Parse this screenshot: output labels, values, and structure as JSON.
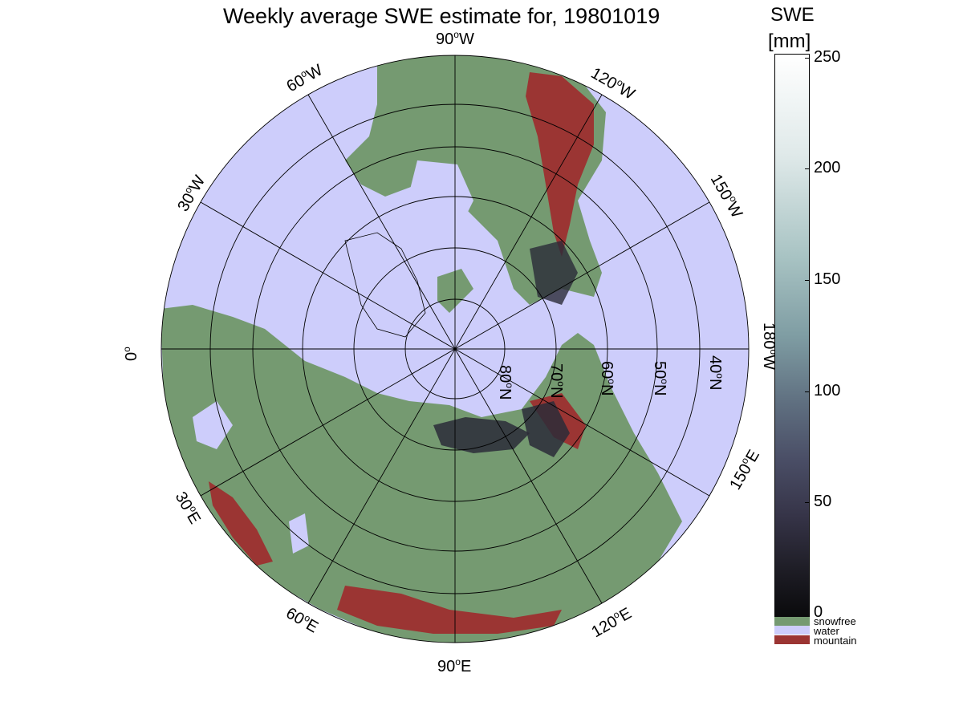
{
  "title": "Weekly average SWE estimate for, 19801019",
  "colorbar": {
    "title_line1": "SWE",
    "title_line2": "[mm]",
    "ticks": [
      {
        "label": "250",
        "value": 250
      },
      {
        "label": "200",
        "value": 200
      },
      {
        "label": "150",
        "value": 150
      },
      {
        "label": "100",
        "value": 100
      },
      {
        "label": "50",
        "value": 50
      },
      {
        "label": "0",
        "value": 0
      }
    ],
    "range": [
      0,
      250
    ]
  },
  "legend": [
    {
      "label": "snowfree",
      "color": "#759a71"
    },
    {
      "label": "water",
      "color": "#cdcdfb"
    },
    {
      "label": "mountain",
      "color": "#9b3533"
    }
  ],
  "map": {
    "projection": "north polar stereographic",
    "ocean_color": "#cdcdfb",
    "land_color": "#759a71",
    "mountain_color": "#9b3533",
    "snow_color": "#2b2b38",
    "longitude_labels": [
      {
        "deg": "90",
        "hemi": "W"
      },
      {
        "deg": "120",
        "hemi": "W"
      },
      {
        "deg": "150",
        "hemi": "W"
      },
      {
        "deg": "180",
        "hemi": "W"
      },
      {
        "deg": "150",
        "hemi": "E"
      },
      {
        "deg": "120",
        "hemi": "E"
      },
      {
        "deg": "90",
        "hemi": "E"
      },
      {
        "deg": "60",
        "hemi": "E"
      },
      {
        "deg": "30",
        "hemi": "E"
      },
      {
        "deg": "0",
        "hemi": ""
      },
      {
        "deg": "30",
        "hemi": "W"
      },
      {
        "deg": "60",
        "hemi": "W"
      }
    ],
    "latitude_labels": [
      {
        "deg": "80",
        "hemi": "N"
      },
      {
        "deg": "70",
        "hemi": "N"
      },
      {
        "deg": "60",
        "hemi": "N"
      },
      {
        "deg": "50",
        "hemi": "N"
      },
      {
        "deg": "40",
        "hemi": "N"
      }
    ]
  }
}
